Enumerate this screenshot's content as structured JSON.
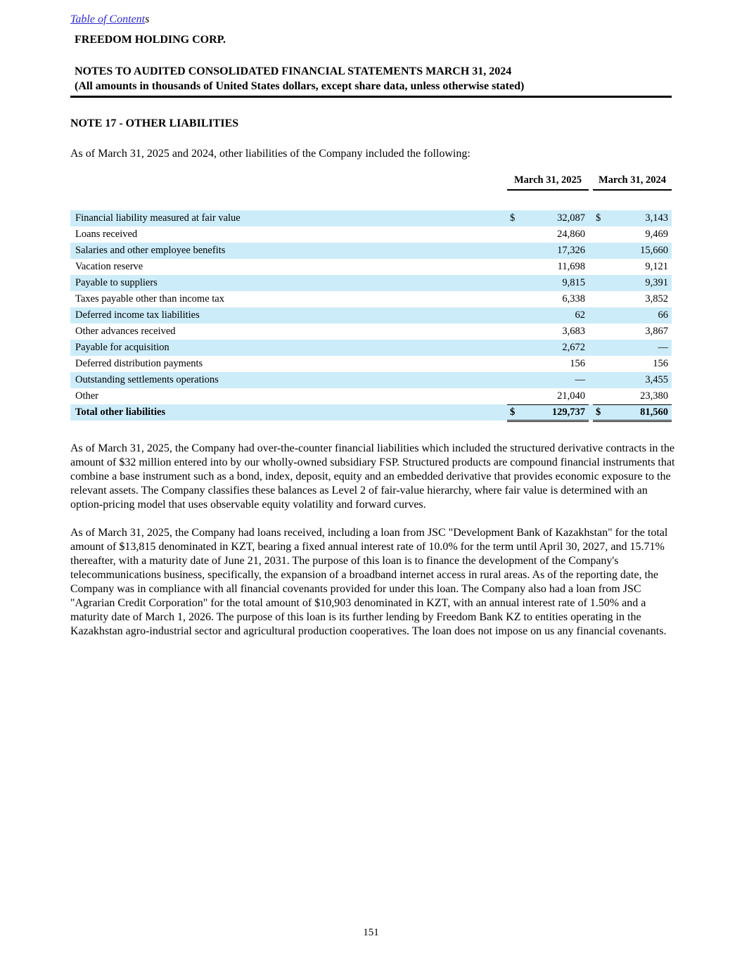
{
  "header": {
    "toc_link_text": "Table of Content",
    "toc_link_suffix": "s",
    "company_name": "FREEDOM HOLDING CORP.",
    "statement_title": "NOTES TO AUDITED CONSOLIDATED FINANCIAL STATEMENTS MARCH 31, 2024",
    "statement_subtitle": "(All amounts in thousands of United States dollars, except share data, unless otherwise stated)"
  },
  "note": {
    "title": "NOTE 17 - OTHER LIABILITIES",
    "intro": "As of March 31, 2025 and 2024, other liabilities of the Company included the following:"
  },
  "table": {
    "col_2025": "March 31, 2025",
    "col_2024": "March 31, 2024",
    "rows": [
      {
        "label": "Financial liability measured at fair value",
        "d1": "$",
        "v1": "32,087",
        "d2": "$",
        "v2": "3,143"
      },
      {
        "label": "Loans received",
        "d1": "",
        "v1": "24,860",
        "d2": "",
        "v2": "9,469"
      },
      {
        "label": "Salaries and other employee benefits",
        "d1": "",
        "v1": "17,326",
        "d2": "",
        "v2": "15,660"
      },
      {
        "label": "Vacation reserve",
        "d1": "",
        "v1": "11,698",
        "d2": "",
        "v2": "9,121"
      },
      {
        "label": "Payable to suppliers",
        "d1": "",
        "v1": "9,815",
        "d2": "",
        "v2": "9,391"
      },
      {
        "label": "Taxes payable other than income tax",
        "d1": "",
        "v1": "6,338",
        "d2": "",
        "v2": "3,852"
      },
      {
        "label": "Deferred income tax liabilities",
        "d1": "",
        "v1": "62",
        "d2": "",
        "v2": "66"
      },
      {
        "label": "Other advances received",
        "d1": "",
        "v1": "3,683",
        "d2": "",
        "v2": "3,867"
      },
      {
        "label": "Payable for acquisition",
        "d1": "",
        "v1": "2,672",
        "d2": "",
        "v2": "—"
      },
      {
        "label": "Deferred distribution payments",
        "d1": "",
        "v1": "156",
        "d2": "",
        "v2": "156"
      },
      {
        "label": "Outstanding settlements operations",
        "d1": "",
        "v1": "—",
        "d2": "",
        "v2": "3,455"
      },
      {
        "label": "Other",
        "d1": "",
        "v1": "21,040",
        "d2": "",
        "v2": "23,380"
      },
      {
        "label": "Total other liabilities",
        "d1": "$",
        "v1": "129,737",
        "d2": "$",
        "v2": "81,560"
      }
    ]
  },
  "paragraphs": {
    "p1": "As of March 31, 2025, the Company had over-the-counter financial liabilities which included the structured derivative contracts in the amount of $32 million entered into by our wholly-owned subsidiary FSP. Structured products are compound financial instruments that combine a base instrument such as a bond, index, deposit, equity and an embedded derivative that provides economic exposure to the relevant assets. The Company classifies these balances as Level 2 of fair-value hierarchy, where fair value is determined with an option-pricing model that uses observable equity volatility and forward curves.",
    "p2": "As of March 31, 2025, the Company had loans received, including a loan from JSC \"Development Bank of Kazakhstan\" for the total amount of $13,815 denominated in KZT, bearing a fixed annual interest rate of 10.0% for the term until April 30, 2027, and 15.71% thereafter, with a maturity date of June 21, 2031. The purpose of this loan is to finance the development of the Company's telecommunications business, specifically, the expansion of a broadband internet access in rural areas. As of the reporting date, the Company was in compliance with all financial covenants provided for under this loan. The Company also had a loan from JSC \"Agrarian Credit Corporation\" for the total amount of $10,903 denominated in KZT, with an annual interest rate of 1.50% and a maturity date of March 1, 2026. The purpose of this loan is its further lending by Freedom Bank KZ to entities operating in the Kazakhstan agro-industrial sector and agricultural production cooperatives. The loan does not impose on us any financial covenants."
  },
  "footer": {
    "page_number": "151"
  },
  "colors": {
    "row_highlight": "#cdecf9",
    "link": "#2b28d5",
    "rule": "#000000"
  }
}
